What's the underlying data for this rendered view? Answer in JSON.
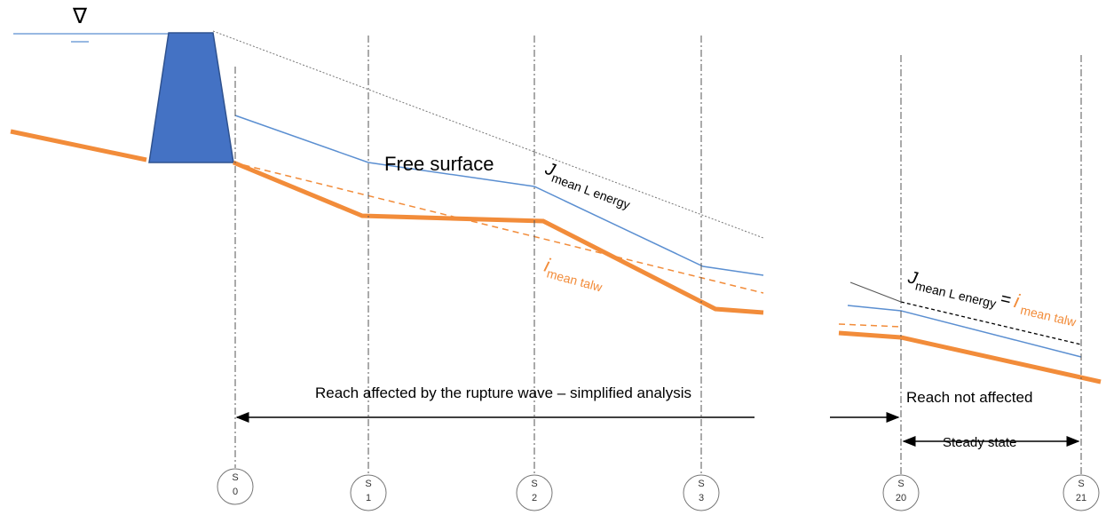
{
  "water_level_symbol": "∇",
  "labels": {
    "free_surface": "Free surface",
    "energy_slope": {
      "symbol": "J",
      "subscript": "mean L energy"
    },
    "bed_slope": {
      "symbol": "i",
      "subscript": "mean talw"
    },
    "equality": {
      "lhs_symbol": "J",
      "lhs_subscript": "mean L energy",
      "operator": "=",
      "rhs_symbol": "i",
      "rhs_subscript": "mean talw"
    },
    "reach_affected": "Reach affected by the rupture wave – simplified analysis",
    "reach_not_affected": "Reach not affected",
    "steady_state": "Steady state"
  },
  "sections": [
    {
      "letter": "S",
      "number": "0"
    },
    {
      "letter": "S",
      "number": "1"
    },
    {
      "letter": "S",
      "number": "2"
    },
    {
      "letter": "S",
      "number": "3"
    },
    {
      "letter": "S",
      "number": "20"
    },
    {
      "letter": "S",
      "number": "21"
    }
  ]
}
